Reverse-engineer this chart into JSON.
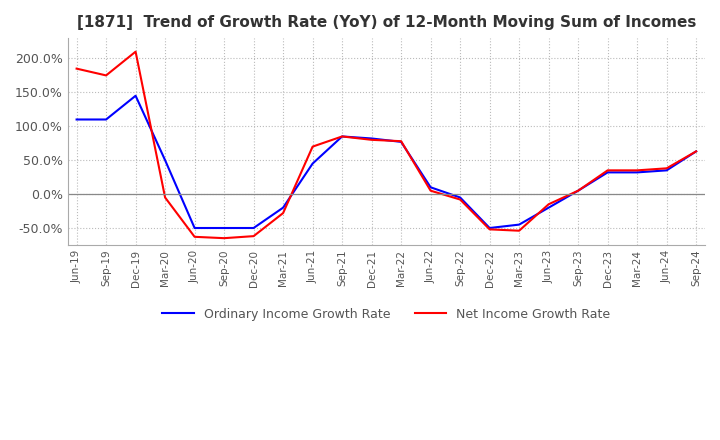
{
  "title": "[1871]  Trend of Growth Rate (YoY) of 12-Month Moving Sum of Incomes",
  "title_fontsize": 11,
  "ylim": [
    -75,
    230
  ],
  "yticks": [
    -50,
    0,
    50,
    100,
    150,
    200
  ],
  "legend_labels": [
    "Ordinary Income Growth Rate",
    "Net Income Growth Rate"
  ],
  "line_colors": [
    "blue",
    "red"
  ],
  "background_color": "#ffffff",
  "grid_color": "#bbbbbb",
  "x_labels": [
    "Jun-19",
    "Sep-19",
    "Dec-19",
    "Mar-20",
    "Jun-20",
    "Sep-20",
    "Dec-20",
    "Mar-21",
    "Jun-21",
    "Sep-21",
    "Dec-21",
    "Mar-22",
    "Jun-22",
    "Sep-22",
    "Dec-22",
    "Mar-23",
    "Jun-23",
    "Sep-23",
    "Dec-23",
    "Mar-24",
    "Jun-24",
    "Sep-24"
  ],
  "ordinary_income": [
    110,
    110,
    145,
    50,
    -50,
    -50,
    -50,
    -20,
    45,
    85,
    82,
    77,
    10,
    -5,
    -50,
    -45,
    -20,
    5,
    32,
    32,
    35,
    63
  ],
  "net_income": [
    185,
    175,
    210,
    -5,
    -63,
    -65,
    -62,
    -28,
    70,
    85,
    80,
    78,
    5,
    -8,
    -52,
    -54,
    -15,
    5,
    35,
    35,
    38,
    63
  ]
}
